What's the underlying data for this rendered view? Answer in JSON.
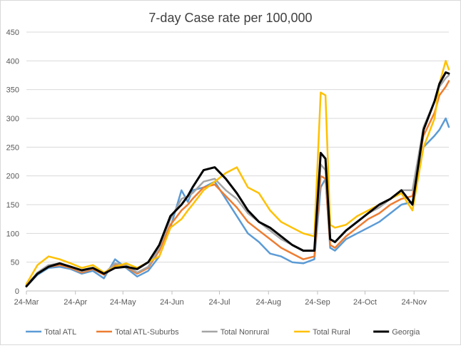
{
  "chart_data": {
    "type": "line",
    "title": "7-day Case rate per 100,000",
    "xlabel": "",
    "ylabel": "",
    "ylim": [
      0,
      450
    ],
    "yticks": [
      0,
      50,
      100,
      150,
      200,
      250,
      300,
      350,
      400,
      450
    ],
    "xlim": [
      "2020-03-24",
      "2020-12-16"
    ],
    "xticks": [
      {
        "label": "24-Mar",
        "date": "2020-03-24"
      },
      {
        "label": "24-Apr",
        "date": "2020-04-24"
      },
      {
        "label": "24-May",
        "date": "2020-05-24"
      },
      {
        "label": "24-Jun",
        "date": "2020-06-24"
      },
      {
        "label": "24-Jul",
        "date": "2020-07-24"
      },
      {
        "label": "24-Aug",
        "date": "2020-08-24"
      },
      {
        "label": "24-Sep",
        "date": "2020-09-24"
      },
      {
        "label": "24-Oct",
        "date": "2020-10-24"
      },
      {
        "label": "24-Nov",
        "date": "2020-11-24"
      }
    ],
    "grid": "horizontal",
    "legend_position": "bottom",
    "series": [
      {
        "name": "Total ATL",
        "color": "#5b9bd5",
        "x": [
          "2020-03-24",
          "2020-03-31",
          "2020-04-07",
          "2020-04-14",
          "2020-04-21",
          "2020-04-28",
          "2020-05-05",
          "2020-05-12",
          "2020-05-19",
          "2020-05-26",
          "2020-06-02",
          "2020-06-09",
          "2020-06-16",
          "2020-06-23",
          "2020-06-30",
          "2020-07-04",
          "2020-07-07",
          "2020-07-14",
          "2020-07-21",
          "2020-07-28",
          "2020-08-04",
          "2020-08-11",
          "2020-08-18",
          "2020-08-25",
          "2020-09-01",
          "2020-09-08",
          "2020-09-15",
          "2020-09-22",
          "2020-09-26",
          "2020-09-29",
          "2020-10-02",
          "2020-10-05",
          "2020-10-12",
          "2020-10-19",
          "2020-10-26",
          "2020-11-02",
          "2020-11-09",
          "2020-11-16",
          "2020-11-23",
          "2020-11-30",
          "2020-12-07",
          "2020-12-10",
          "2020-12-14",
          "2020-12-16"
        ],
        "values": [
          8,
          28,
          40,
          42,
          38,
          30,
          35,
          22,
          55,
          40,
          25,
          35,
          60,
          110,
          175,
          155,
          175,
          180,
          190,
          160,
          130,
          100,
          85,
          65,
          60,
          50,
          48,
          55,
          180,
          195,
          75,
          70,
          90,
          100,
          110,
          120,
          135,
          150,
          155,
          250,
          270,
          280,
          300,
          285
        ]
      },
      {
        "name": "Total ATL-Suburbs",
        "color": "#ed7d31",
        "x": [
          "2020-03-24",
          "2020-03-31",
          "2020-04-07",
          "2020-04-14",
          "2020-04-21",
          "2020-04-28",
          "2020-05-05",
          "2020-05-12",
          "2020-05-19",
          "2020-05-26",
          "2020-06-02",
          "2020-06-09",
          "2020-06-16",
          "2020-06-23",
          "2020-06-30",
          "2020-07-04",
          "2020-07-07",
          "2020-07-14",
          "2020-07-21",
          "2020-07-28",
          "2020-08-04",
          "2020-08-11",
          "2020-08-18",
          "2020-08-25",
          "2020-09-01",
          "2020-09-08",
          "2020-09-15",
          "2020-09-22",
          "2020-09-26",
          "2020-09-29",
          "2020-10-02",
          "2020-10-05",
          "2020-10-12",
          "2020-10-19",
          "2020-10-26",
          "2020-11-02",
          "2020-11-09",
          "2020-11-16",
          "2020-11-23",
          "2020-11-30",
          "2020-12-07",
          "2020-12-10",
          "2020-12-14",
          "2020-12-16"
        ],
        "values": [
          10,
          30,
          42,
          45,
          40,
          32,
          38,
          28,
          45,
          42,
          30,
          40,
          70,
          115,
          140,
          150,
          160,
          180,
          185,
          165,
          145,
          120,
          105,
          90,
          75,
          65,
          55,
          60,
          200,
          195,
          80,
          75,
          95,
          110,
          125,
          135,
          150,
          160,
          165,
          270,
          310,
          340,
          355,
          365
        ]
      },
      {
        "name": "Total Nonrural",
        "color": "#a5a5a5",
        "x": [
          "2020-03-24",
          "2020-03-31",
          "2020-04-07",
          "2020-04-14",
          "2020-04-21",
          "2020-04-28",
          "2020-05-05",
          "2020-05-12",
          "2020-05-19",
          "2020-05-26",
          "2020-06-02",
          "2020-06-09",
          "2020-06-16",
          "2020-06-23",
          "2020-06-30",
          "2020-07-04",
          "2020-07-07",
          "2020-07-14",
          "2020-07-21",
          "2020-07-28",
          "2020-08-04",
          "2020-08-11",
          "2020-08-18",
          "2020-08-25",
          "2020-09-01",
          "2020-09-08",
          "2020-09-15",
          "2020-09-22",
          "2020-09-26",
          "2020-09-29",
          "2020-10-02",
          "2020-10-05",
          "2020-10-12",
          "2020-10-19",
          "2020-10-26",
          "2020-11-02",
          "2020-11-09",
          "2020-11-16",
          "2020-11-23",
          "2020-11-30",
          "2020-12-07",
          "2020-12-10",
          "2020-12-14",
          "2020-12-16"
        ],
        "values": [
          10,
          32,
          45,
          48,
          42,
          34,
          40,
          30,
          48,
          45,
          32,
          42,
          75,
          125,
          160,
          165,
          170,
          190,
          195,
          175,
          160,
          135,
          120,
          105,
          90,
          80,
          70,
          70,
          220,
          210,
          90,
          85,
          105,
          120,
          135,
          145,
          160,
          175,
          175,
          285,
          330,
          355,
          370,
          375
        ]
      },
      {
        "name": "Total Rural",
        "color": "#ffc000",
        "x": [
          "2020-03-24",
          "2020-03-31",
          "2020-04-07",
          "2020-04-14",
          "2020-04-21",
          "2020-04-28",
          "2020-05-05",
          "2020-05-12",
          "2020-05-19",
          "2020-05-26",
          "2020-06-02",
          "2020-06-09",
          "2020-06-16",
          "2020-06-23",
          "2020-06-30",
          "2020-07-04",
          "2020-07-07",
          "2020-07-14",
          "2020-07-21",
          "2020-07-28",
          "2020-08-04",
          "2020-08-11",
          "2020-08-18",
          "2020-08-25",
          "2020-09-01",
          "2020-09-08",
          "2020-09-15",
          "2020-09-22",
          "2020-09-26",
          "2020-09-29",
          "2020-10-02",
          "2020-10-05",
          "2020-10-12",
          "2020-10-19",
          "2020-10-26",
          "2020-11-02",
          "2020-11-09",
          "2020-11-16",
          "2020-11-23",
          "2020-11-30",
          "2020-12-07",
          "2020-12-10",
          "2020-12-14",
          "2020-12-16"
        ],
        "values": [
          12,
          45,
          60,
          55,
          48,
          40,
          45,
          32,
          42,
          48,
          40,
          50,
          60,
          110,
          125,
          140,
          150,
          175,
          190,
          205,
          215,
          180,
          170,
          140,
          120,
          110,
          100,
          95,
          345,
          340,
          115,
          110,
          115,
          130,
          140,
          150,
          160,
          170,
          140,
          250,
          300,
          360,
          400,
          385
        ]
      },
      {
        "name": "Georgia",
        "color": "#000000",
        "x": [
          "2020-03-24",
          "2020-03-31",
          "2020-04-07",
          "2020-04-14",
          "2020-04-21",
          "2020-04-28",
          "2020-05-05",
          "2020-05-12",
          "2020-05-19",
          "2020-05-26",
          "2020-06-02",
          "2020-06-09",
          "2020-06-16",
          "2020-06-23",
          "2020-06-30",
          "2020-07-04",
          "2020-07-07",
          "2020-07-14",
          "2020-07-21",
          "2020-07-28",
          "2020-08-04",
          "2020-08-11",
          "2020-08-18",
          "2020-08-25",
          "2020-09-01",
          "2020-09-08",
          "2020-09-15",
          "2020-09-22",
          "2020-09-26",
          "2020-09-29",
          "2020-10-02",
          "2020-10-05",
          "2020-10-12",
          "2020-10-19",
          "2020-10-26",
          "2020-11-02",
          "2020-11-09",
          "2020-11-16",
          "2020-11-23",
          "2020-11-30",
          "2020-12-07",
          "2020-12-10",
          "2020-12-14",
          "2020-12-16"
        ],
        "values": [
          8,
          30,
          42,
          48,
          42,
          36,
          40,
          30,
          40,
          42,
          38,
          50,
          80,
          130,
          150,
          165,
          180,
          210,
          215,
          195,
          170,
          140,
          120,
          110,
          95,
          80,
          70,
          70,
          240,
          230,
          90,
          85,
          105,
          120,
          135,
          150,
          160,
          175,
          150,
          280,
          330,
          360,
          380,
          378
        ]
      }
    ]
  }
}
